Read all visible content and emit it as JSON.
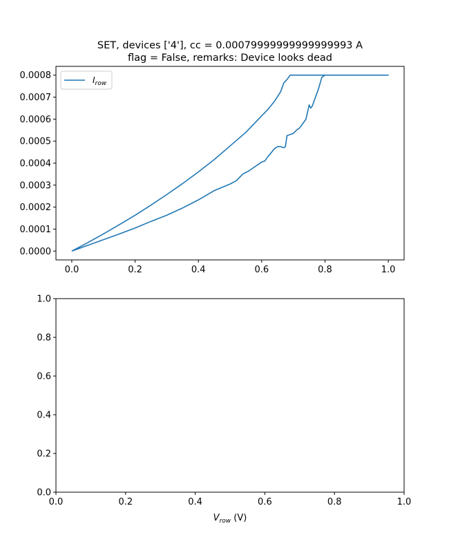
{
  "figure": {
    "title_line1": "SET, devices ['4'], cc = 0.00079999999999999993 A",
    "title_line2": "flag = False, remarks: Device looks dead"
  },
  "chart_data": [
    {
      "type": "line",
      "title": "SET, devices ['4'], cc = 0.00079999999999999993 A\nflag = False, remarks: Device looks dead",
      "xlabel": "",
      "ylabel": "",
      "xlim": [
        -0.05,
        1.05
      ],
      "ylim": [
        -4e-05,
        0.00084
      ],
      "xticks": [
        "0.0",
        "0.2",
        "0.4",
        "0.6",
        "0.8",
        "1.0"
      ],
      "xtick_values": [
        0,
        0.2,
        0.4,
        0.6,
        0.8,
        1.0
      ],
      "yticks": [
        "0.0000",
        "0.0001",
        "0.0002",
        "0.0003",
        "0.0004",
        "0.0005",
        "0.0006",
        "0.0007",
        "0.0008"
      ],
      "ytick_values": [
        0,
        0.0001,
        0.0002,
        0.0003,
        0.0004,
        0.0005,
        0.0006,
        0.0007,
        0.0008
      ],
      "grid": false,
      "legend": "upper left",
      "color": "#1f77b4",
      "series": [
        {
          "name": "I_row",
          "legend_main": "I",
          "legend_sub": "row",
          "x": [
            0.0,
            0.05,
            0.1,
            0.15,
            0.2,
            0.25,
            0.3,
            0.35,
            0.4,
            0.45,
            0.5,
            0.55,
            0.6,
            0.62,
            0.64,
            0.66,
            0.67,
            0.68,
            0.69,
            0.7,
            0.75,
            0.8,
            0.85,
            0.9,
            0.95,
            1.0,
            0.95,
            0.9,
            0.85,
            0.8,
            0.79,
            0.78,
            0.77,
            0.76,
            0.755,
            0.75,
            0.74,
            0.73,
            0.72,
            0.71,
            0.7,
            0.69,
            0.68,
            0.675,
            0.67,
            0.66,
            0.65,
            0.64,
            0.62,
            0.61,
            0.6,
            0.58,
            0.56,
            0.54,
            0.52,
            0.5,
            0.45,
            0.4,
            0.35,
            0.3,
            0.25,
            0.2,
            0.15,
            0.1,
            0.05,
            0.0
          ],
          "y": [
            0.0,
            3.8e-05,
            7.8e-05,
            0.00012,
            0.000163,
            0.000209,
            0.000257,
            0.000307,
            0.00036,
            0.000416,
            0.000478,
            0.00054,
            0.000615,
            0.000645,
            0.00068,
            0.000725,
            0.000765,
            0.00078,
            0.0008,
            0.0008,
            0.0008,
            0.0008,
            0.0008,
            0.0008,
            0.0008,
            0.0008,
            0.0008,
            0.0008,
            0.0008,
            0.0008,
            0.00079,
            0.00074,
            0.0007,
            0.00066,
            0.00065,
            0.000665,
            0.0006,
            0.00058,
            0.00056,
            0.00055,
            0.000535,
            0.00053,
            0.000525,
            0.000475,
            0.00047,
            0.000475,
            0.000475,
            0.000465,
            0.00043,
            0.00041,
            0.000405,
            0.000385,
            0.000365,
            0.00035,
            0.00032,
            0.000305,
            0.000275,
            0.000233,
            0.000196,
            0.000163,
            0.000135,
            0.000105,
            7.8e-05,
            5.2e-05,
            2.6e-05,
            0.0
          ]
        }
      ]
    },
    {
      "type": "line",
      "title": "",
      "xlabel_main": "V",
      "xlabel_sub": "row",
      "xlabel_unit": " (V)",
      "ylabel": "",
      "xlim": [
        0.0,
        1.0
      ],
      "ylim": [
        0.0,
        1.0
      ],
      "xticks": [
        "0.0",
        "0.2",
        "0.4",
        "0.6",
        "0.8",
        "1.0"
      ],
      "xtick_values": [
        0,
        0.2,
        0.4,
        0.6,
        0.8,
        1.0
      ],
      "yticks": [
        "0.0",
        "0.2",
        "0.4",
        "0.6",
        "0.8",
        "1.0"
      ],
      "ytick_values": [
        0,
        0.2,
        0.4,
        0.6,
        0.8,
        1.0
      ],
      "grid": false,
      "series": []
    }
  ]
}
